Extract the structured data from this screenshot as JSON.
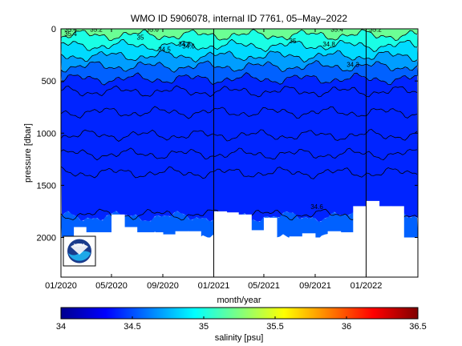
{
  "chart_data": [
    {
      "type": "heatmap",
      "title": "WMO ID 5906078, internal ID 7761, 05–May–2022",
      "xlabel": "month/year",
      "ylabel": "pressure [dbar]",
      "xlim": [
        "2020-01",
        "2022-05"
      ],
      "ylim": [
        2380,
        0
      ],
      "y_inverted": true,
      "x_ticks": [
        "01/2020",
        "05/2020",
        "09/2020",
        "01/2021",
        "05/2021",
        "09/2021",
        "01/2022"
      ],
      "y_ticks": [
        "0",
        "500",
        "1000",
        "1500",
        "2000"
      ],
      "year_boundaries": [
        "2021-01",
        "2022-01"
      ],
      "grid": false,
      "colormap": "jet",
      "profile_max_pressure_dbar": [
        [
          "2020-01",
          2000
        ],
        [
          "2020-02",
          1900
        ],
        [
          "2020-03",
          1950
        ],
        [
          "2020-04",
          1950
        ],
        [
          "2020-05",
          1780
        ],
        [
          "2020-06",
          1900
        ],
        [
          "2020-07",
          1950
        ],
        [
          "2020-08",
          1950
        ],
        [
          "2020-09",
          1970
        ],
        [
          "2020-10",
          1940
        ],
        [
          "2020-11",
          1940
        ],
        [
          "2020-12",
          2000
        ],
        [
          "2021-01",
          1750
        ],
        [
          "2021-02",
          1760
        ],
        [
          "2021-03",
          1780
        ],
        [
          "2021-04",
          1930
        ],
        [
          "2021-05",
          1810
        ],
        [
          "2021-06",
          2000
        ],
        [
          "2021-07",
          1990
        ],
        [
          "2021-08",
          1960
        ],
        [
          "2021-09",
          2000
        ],
        [
          "2021-10",
          1940
        ],
        [
          "2021-11",
          1950
        ],
        [
          "2021-12",
          1700
        ],
        [
          "2022-01",
          1650
        ],
        [
          "2022-02",
          1700
        ],
        [
          "2022-03",
          1700
        ],
        [
          "2022-04",
          2000
        ]
      ],
      "contour_labels": [
        "35.4",
        "35.2",
        "35.6",
        "35.4",
        "35.2",
        "35.4",
        "35",
        "35",
        "34.8",
        "34.8",
        "34.6",
        "34.5",
        "34.3",
        "34.6"
      ],
      "color_bands": [
        {
          "min_dbar": 0,
          "max_dbar": 60,
          "salinity": 35.2
        },
        {
          "min_dbar": 60,
          "max_dbar": 160,
          "salinity": 35.0
        },
        {
          "min_dbar": 160,
          "max_dbar": 260,
          "salinity": 34.85
        },
        {
          "min_dbar": 260,
          "max_dbar": 360,
          "salinity": 34.7
        },
        {
          "min_dbar": 360,
          "max_dbar": 480,
          "salinity": 34.55
        },
        {
          "min_dbar": 480,
          "max_dbar": 1800,
          "salinity": 34.4
        },
        {
          "min_dbar": 1800,
          "max_dbar": 2000,
          "salinity": 34.55
        }
      ],
      "contour_levels_dbar": [
        60,
        160,
        260,
        360,
        480,
        600,
        800,
        1020,
        1200,
        1380,
        1780
      ]
    },
    {
      "type": "heatmap",
      "role": "colorbar",
      "xlabel": "salinity [psu]",
      "xlim": [
        34,
        36.5
      ],
      "ticks": [
        "34",
        "34.5",
        "35",
        "35.5",
        "36",
        "36.5"
      ],
      "colormap": "jet"
    }
  ],
  "logo": {
    "text": "NOAA"
  },
  "colors": {
    "background": "#ffffff",
    "axis": "#000000",
    "contour": "#000000"
  }
}
